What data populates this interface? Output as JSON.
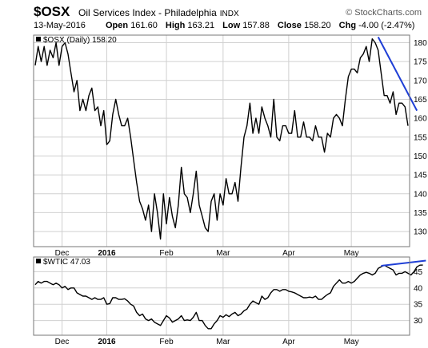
{
  "header": {
    "ticker": "$OSX",
    "name": "Oil Services Index - Philadelphia",
    "exchange": "INDX",
    "brand": "© StockCharts.com",
    "date": "13-May-2016",
    "open_label": "Open",
    "open": "161.60",
    "high_label": "High",
    "high": "163.21",
    "low_label": "Low",
    "low": "157.88",
    "close_label": "Close",
    "close": "158.20",
    "chg_label": "Chg",
    "chg": "-4.00 (-2.47%)"
  },
  "chart_data": [
    {
      "type": "line",
      "legend": "$OSX (Daily) 158.20",
      "ylim": [
        126,
        182
      ],
      "yticks": [
        130,
        135,
        140,
        145,
        150,
        155,
        160,
        165,
        170,
        175,
        180
      ],
      "x_ticks": [
        {
          "label": "Dec",
          "idx": 9,
          "bold": false
        },
        {
          "label": "2016",
          "idx": 24,
          "bold": true
        },
        {
          "label": "Feb",
          "idx": 44,
          "bold": false
        },
        {
          "label": "Mar",
          "idx": 63,
          "bold": false
        },
        {
          "label": "Apr",
          "idx": 85,
          "bold": false
        },
        {
          "label": "May",
          "idx": 106,
          "bold": false
        }
      ],
      "series": [
        {
          "color": "#000000",
          "values": [
            174,
            179,
            175,
            179,
            174,
            178,
            176,
            180,
            174,
            179,
            180,
            177,
            172,
            167,
            170,
            162,
            165,
            162,
            166,
            168,
            162,
            163,
            158,
            162,
            153,
            154,
            161,
            165,
            161,
            158,
            158,
            160,
            155,
            149,
            143,
            138,
            136,
            133,
            137,
            130,
            140,
            135,
            128,
            140,
            132,
            139,
            134,
            131,
            137,
            147,
            140,
            139,
            135,
            140,
            146,
            137,
            134,
            131,
            130,
            138,
            140,
            133,
            140,
            137,
            144,
            140,
            140,
            143,
            138,
            147,
            155,
            158,
            164,
            156,
            160,
            156,
            163,
            160,
            158,
            155,
            165,
            155,
            154,
            158,
            158,
            156,
            156,
            162,
            155,
            155,
            159,
            155,
            155,
            154,
            158,
            155,
            155,
            151,
            156,
            155,
            160,
            161,
            160,
            158,
            165,
            171,
            173,
            173,
            172,
            176,
            177,
            179,
            175,
            181,
            180,
            178,
            172,
            166,
            166,
            164,
            167,
            161,
            164,
            164,
            163,
            158
          ]
        }
      ],
      "annotation": {
        "from_idx": 115,
        "from_y": 181.5,
        "to_idx": 128,
        "to_y": 162,
        "color": "#1f3fd6"
      }
    },
    {
      "type": "line",
      "legend": "$WTIC 47.03",
      "ylim": [
        25.5,
        49.5
      ],
      "yticks": [
        30,
        35,
        40,
        45
      ],
      "series": [
        {
          "color": "#000000",
          "values": [
            41,
            42,
            41.5,
            42,
            42,
            41.5,
            41,
            41.5,
            41,
            40,
            40.5,
            39.5,
            40,
            40,
            38.5,
            38,
            37.5,
            37.5,
            37,
            36.5,
            37,
            36.5,
            36.5,
            37,
            35,
            35.2,
            37,
            37,
            36.5,
            36.5,
            36.7,
            36,
            35,
            34.5,
            32.5,
            31.5,
            32,
            30.5,
            30,
            30.5,
            29.5,
            29,
            28.5,
            30,
            31.5,
            30.8,
            29.5,
            30,
            30.5,
            31.5,
            30,
            30.2,
            30,
            31,
            32.5,
            30,
            30,
            28.5,
            27.5,
            27.5,
            29,
            30,
            31.5,
            31,
            31.8,
            31.2,
            32,
            32.5,
            31.5,
            32,
            33,
            33.5,
            35,
            36,
            35.5,
            35,
            37.5,
            36.5,
            37,
            38.5,
            39.5,
            39.5,
            39,
            39.5,
            39.5,
            39,
            38.8,
            38.5,
            38,
            37.5,
            37,
            37,
            37.2,
            37,
            37.5,
            36.5,
            36.5,
            37.3,
            38,
            38.5,
            40.5,
            41.5,
            42.5,
            41.5,
            41.5,
            42,
            41.5,
            42,
            43,
            44,
            44.5,
            44.8,
            44.5,
            44,
            44.5,
            46,
            46.5,
            47,
            46.5,
            46,
            45.5,
            44,
            44.5,
            44.5,
            45,
            44.5,
            44,
            45,
            46.5,
            47,
            47.03
          ]
        }
      ],
      "annotation": {
        "from_idx": 116,
        "from_y": 46.8,
        "to_idx": 131,
        "to_y": 48.4,
        "color": "#1f3fd6"
      }
    }
  ]
}
